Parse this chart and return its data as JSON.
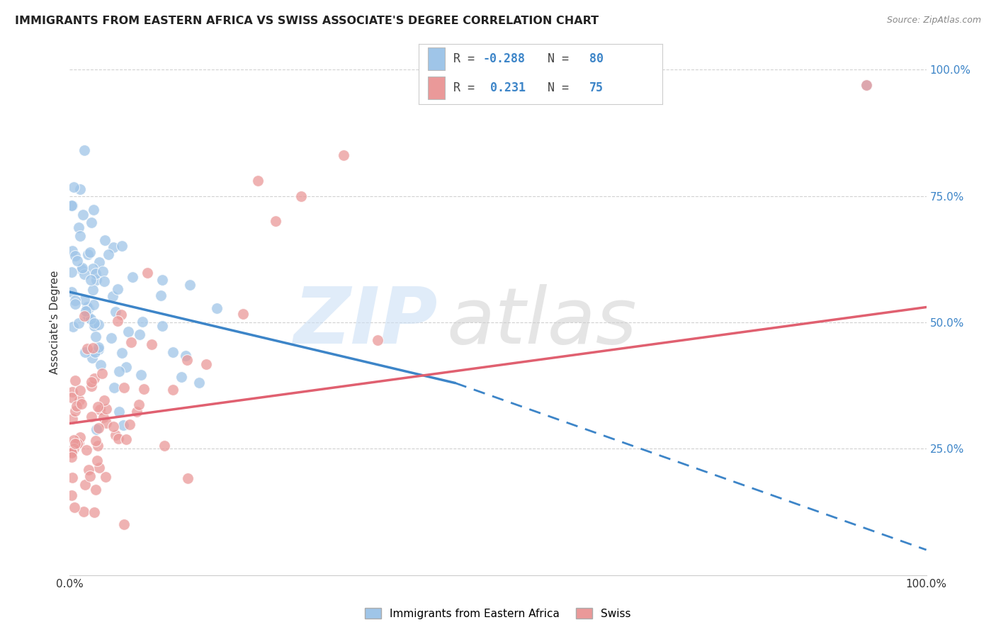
{
  "title": "IMMIGRANTS FROM EASTERN AFRICA VS SWISS ASSOCIATE'S DEGREE CORRELATION CHART",
  "source": "Source: ZipAtlas.com",
  "ylabel": "Associate's Degree",
  "y_tick_labels": [
    "25.0%",
    "50.0%",
    "75.0%",
    "100.0%"
  ],
  "y_tick_vals": [
    25,
    50,
    75,
    100
  ],
  "legend_text_blue": "R = -0.288   N = 80",
  "legend_text_pink": "R =  0.231   N = 75",
  "legend_label_blue": "Immigrants from Eastern Africa",
  "legend_label_pink": "Swiss",
  "blue_color": "#9fc5e8",
  "pink_color": "#ea9999",
  "blue_line_color": "#3d85c8",
  "pink_line_color": "#e06070",
  "blue_R": "-0.288",
  "blue_N": "80",
  "pink_R": "0.231",
  "pink_N": "75",
  "text_R_color": "#666666",
  "text_N_color": "#3d85c8",
  "xmin": 0,
  "xmax": 100,
  "ymin": 0,
  "ymax": 100,
  "background_color": "#ffffff",
  "grid_color": "#cccccc",
  "blue_solid_line": [
    [
      0,
      56
    ],
    [
      45,
      38
    ]
  ],
  "blue_dashed_line": [
    [
      45,
      38
    ],
    [
      100,
      5
    ]
  ],
  "pink_solid_line": [
    [
      0,
      30
    ],
    [
      100,
      53
    ]
  ]
}
